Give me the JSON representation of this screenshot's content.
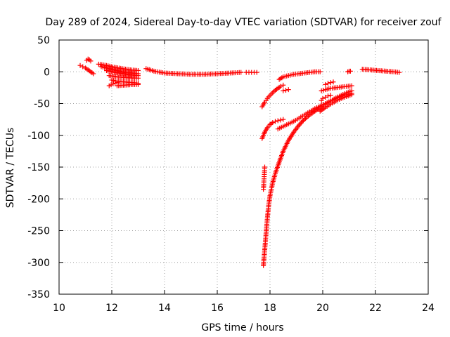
{
  "chart_data": {
    "type": "scatter",
    "title": "Day 289 of 2024, Sidereal Day-to-day VTEC variation (SDTVAR) for receiver zouf",
    "xlabel": "GPS time / hours",
    "ylabel": "SDTVAR / TECUs",
    "xlim": [
      10,
      24
    ],
    "ylim": [
      -350,
      50
    ],
    "xticks": [
      "10",
      "12",
      "14",
      "16",
      "18",
      "20",
      "22",
      "24"
    ],
    "yticks": [
      "50",
      "0",
      "-50",
      "-100",
      "-150",
      "-200",
      "-250",
      "-300",
      "-350"
    ],
    "grid": true,
    "marker": "plus",
    "series_color": "#ff0000",
    "series": [
      {
        "segments": [
          {
            "x": [
              10.8,
              10.9,
              11.0,
              11.1,
              11.2,
              11.3
            ],
            "y": [
              10,
              8,
              6,
              3,
              0,
              -3
            ]
          },
          {
            "x": [
              11.05,
              11.1,
              11.15,
              11.2
            ],
            "y": [
              18,
              20,
              19,
              17
            ]
          },
          {
            "x": [
              11.5,
              11.8,
              12.1,
              12.4,
              12.7,
              13.0
            ],
            "y": [
              12,
              10,
              7,
              5,
              3,
              2
            ]
          },
          {
            "x": [
              11.6,
              11.9,
              12.2,
              12.5,
              12.8,
              13.0
            ],
            "y": [
              8,
              5,
              2,
              -1,
              -2,
              -3
            ]
          },
          {
            "x": [
              11.8,
              12.1,
              12.4,
              12.7,
              13.0
            ],
            "y": [
              2,
              -1,
              -3,
              -5,
              -6
            ]
          },
          {
            "x": [
              11.9,
              12.2,
              12.5,
              12.8,
              13.0
            ],
            "y": [
              -6,
              -8,
              -9,
              -10,
              -10
            ]
          },
          {
            "x": [
              12.0,
              12.2,
              12.5,
              12.8,
              13.0
            ],
            "y": [
              -13,
              -15,
              -16,
              -17,
              -18
            ]
          },
          {
            "x": [
              11.9,
              12.05,
              12.2
            ],
            "y": [
              -22,
              -19,
              -17
            ]
          },
          {
            "x": [
              12.2,
              12.5,
              12.8,
              13.0
            ],
            "y": [
              -22,
              -21,
              -20,
              -20
            ]
          },
          {
            "x": [
              13.3,
              13.6,
              14.0,
              14.5,
              15.0,
              15.5,
              16.0,
              16.5,
              16.9
            ],
            "y": [
              5,
              1,
              -2,
              -3,
              -4,
              -4,
              -3,
              -2,
              -1
            ]
          },
          {
            "x": [
              17.1,
              17.2,
              17.3,
              17.4,
              17.5
            ],
            "y": [
              -1,
              -1,
              -1,
              -1,
              -1
            ]
          },
          {
            "x": [
              17.7,
              17.8,
              17.9,
              18.0,
              18.1,
              18.2,
              18.3,
              18.4,
              18.5
            ],
            "y": [
              -55,
              -48,
              -42,
              -37,
              -33,
              -29,
              -26,
              -23,
              -21
            ]
          },
          {
            "x": [
              18.35,
              18.5,
              18.7,
              18.9,
              19.1,
              19.3,
              19.5,
              19.7,
              19.9
            ],
            "y": [
              -12,
              -8,
              -6,
              -4,
              -3,
              -2,
              -1,
              0,
              0
            ]
          },
          {
            "x": [
              18.5,
              18.6,
              18.7
            ],
            "y": [
              -30,
              -29,
              -28
            ]
          },
          {
            "x": [
              17.7,
              17.8,
              17.9,
              18.0,
              18.1,
              18.2,
              18.3,
              18.4,
              18.5
            ],
            "y": [
              -105,
              -95,
              -88,
              -83,
              -80,
              -78,
              -77,
              -76,
              -75
            ]
          },
          {
            "x": [
              18.3,
              18.5,
              18.7,
              18.9,
              19.1,
              19.3,
              19.5,
              19.7,
              19.9,
              20.1,
              20.3,
              20.5,
              20.7,
              20.9,
              21.1
            ],
            "y": [
              -90,
              -86,
              -82,
              -78,
              -73,
              -68,
              -63,
              -58,
              -54,
              -50,
              -46,
              -42,
              -39,
              -36,
              -34
            ]
          },
          {
            "x": [
              17.75,
              17.76,
              17.77,
              17.78,
              17.79,
              17.8
            ],
            "y": [
              -185,
              -180,
              -172,
              -165,
              -158,
              -150
            ]
          },
          {
            "x": [
              17.75,
              17.8,
              17.85,
              17.9,
              17.95,
              18.0,
              18.1,
              18.2,
              18.3,
              18.5,
              18.7,
              18.9,
              19.1,
              19.3,
              19.5,
              19.7,
              19.9,
              20.1,
              20.3,
              20.5,
              20.7,
              20.9,
              21.1
            ],
            "y": [
              -305,
              -280,
              -255,
              -230,
              -210,
              -195,
              -175,
              -160,
              -148,
              -125,
              -108,
              -95,
              -84,
              -75,
              -68,
              -62,
              -56,
              -51,
              -46,
              -41,
              -37,
              -33,
              -30
            ]
          },
          {
            "x": [
              19.95,
              20.1,
              20.3,
              20.5,
              20.7,
              20.9,
              21.1
            ],
            "y": [
              -30,
              -28,
              -26,
              -25,
              -24,
              -23,
              -22
            ]
          },
          {
            "x": [
              19.95,
              20.0,
              20.1,
              20.2,
              20.3
            ],
            "y": [
              -45,
              -42,
              -40,
              -38,
              -37
            ]
          },
          {
            "x": [
              19.9,
              20.1,
              20.3,
              20.5,
              20.7,
              20.9,
              21.1
            ],
            "y": [
              -62,
              -56,
              -51,
              -46,
              -42,
              -39,
              -36
            ]
          },
          {
            "x": [
              20.1,
              20.2,
              20.3,
              20.4
            ],
            "y": [
              -20,
              -18,
              -17,
              -16
            ]
          },
          {
            "x": [
              20.95,
              21.0,
              21.05
            ],
            "y": [
              0,
              1,
              1
            ]
          },
          {
            "x": [
              21.5,
              21.8,
              22.1,
              22.4,
              22.7,
              22.9
            ],
            "y": [
              4,
              3,
              2,
              1,
              0,
              -1
            ]
          }
        ]
      }
    ]
  }
}
